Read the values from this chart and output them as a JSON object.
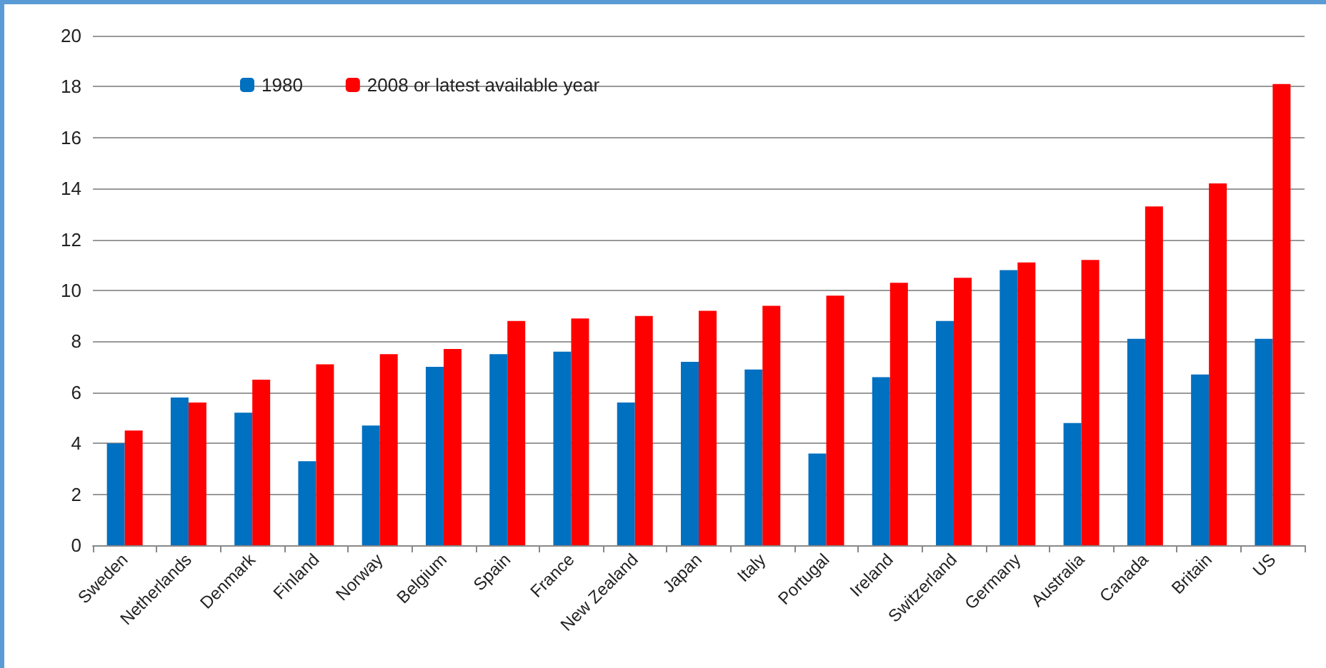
{
  "chart_data": {
    "type": "bar",
    "categories": [
      "Sweden",
      "Netherlands",
      "Denmark",
      "Finland",
      "Norway",
      "Belgium",
      "Spain",
      "France",
      "New Zealand",
      "Japan",
      "Italy",
      "Portugal",
      "Ireland",
      "Switzerland",
      "Germany",
      "Australia",
      "Canada",
      "Britain",
      "US"
    ],
    "series": [
      {
        "name": "1980",
        "color": "#0070c0",
        "values": [
          4.0,
          5.8,
          5.2,
          3.3,
          4.7,
          7.0,
          7.5,
          7.6,
          5.6,
          7.2,
          6.9,
          3.6,
          6.6,
          8.8,
          10.8,
          4.8,
          8.1,
          6.7,
          8.1
        ]
      },
      {
        "name": "2008 or latest available year",
        "color": "#ff0000",
        "values": [
          4.5,
          5.6,
          6.5,
          7.1,
          7.5,
          7.7,
          8.8,
          8.9,
          9.0,
          9.2,
          9.4,
          9.8,
          10.3,
          10.5,
          11.1,
          11.2,
          13.3,
          14.2,
          18.1
        ]
      }
    ],
    "ylim": [
      0,
      20
    ],
    "yticks": [
      0,
      2,
      4,
      6,
      8,
      10,
      12,
      14,
      16,
      18,
      20
    ],
    "grid": "y",
    "legend": "top left"
  }
}
